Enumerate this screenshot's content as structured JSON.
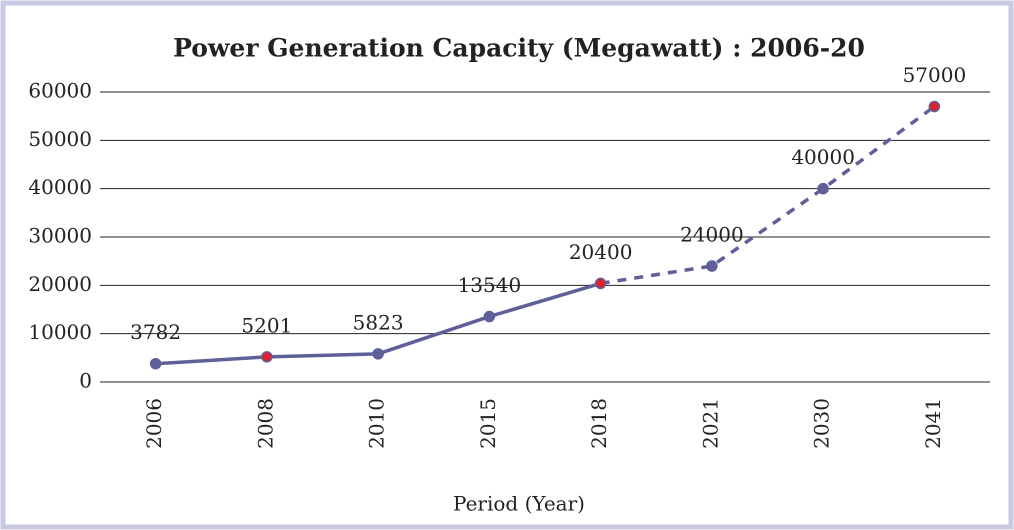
{
  "chart_data": {
    "type": "line",
    "title": "Power Generation Capacity (Megawatt) : 2006-20",
    "x_label": "Period (Year)",
    "categories": [
      "2006",
      "2008",
      "2010",
      "2015",
      "2018",
      "2021",
      "2030",
      "2041"
    ],
    "values": [
      3782,
      5201,
      5823,
      13540,
      20400,
      24000,
      40000,
      57000
    ],
    "color": "#5f5f99",
    "marker_colors": [
      "#5f5f99",
      "#e0202a",
      "#5f5f99",
      "#5f5f99",
      "#e0202a",
      "#5f5f99",
      "#5f5f99",
      "#e0202a"
    ],
    "dashed_from_category": "2018",
    "ylim": [
      0,
      60000
    ],
    "yticks": [
      0,
      10000,
      20000,
      30000,
      40000,
      50000,
      60000
    ],
    "grid": true
  }
}
